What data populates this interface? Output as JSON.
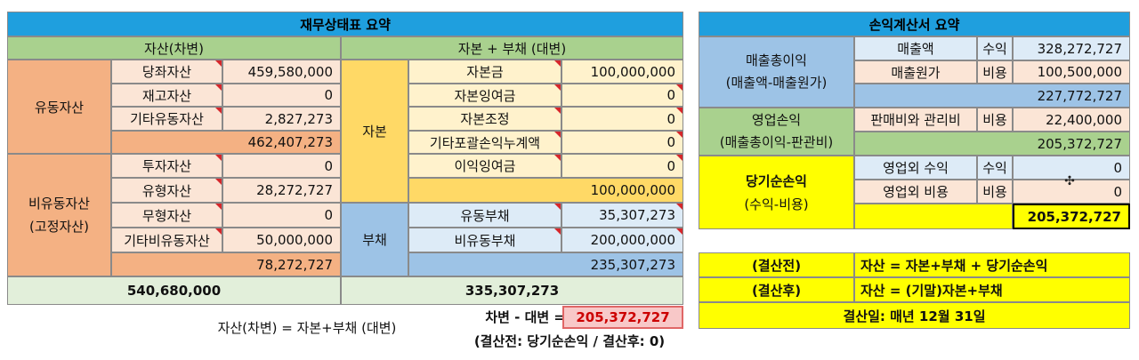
{
  "bs": {
    "title": "재무상태표 요약",
    "assets_header": "자산(차변)",
    "cap_liab_header": "자본 + 부채 (대변)",
    "current_assets": {
      "label": "유동자산",
      "items": [
        {
          "name": "당좌자산",
          "value": "459,580,000"
        },
        {
          "name": "재고자산",
          "value": "0"
        },
        {
          "name": "기타유동자산",
          "value": "2,827,273"
        }
      ],
      "total": "462,407,273"
    },
    "noncurrent_assets": {
      "label1": "비유동자산",
      "label2": "(고정자산)",
      "items": [
        {
          "name": "투자자산",
          "value": "0"
        },
        {
          "name": "유형자산",
          "value": "28,272,727"
        },
        {
          "name": "무형자산",
          "value": "0"
        },
        {
          "name": "기타비유동자산",
          "value": "50,000,000"
        }
      ],
      "total": "78,272,727"
    },
    "capital": {
      "label": "자본",
      "items": [
        {
          "name": "자본금",
          "value": "100,000,000"
        },
        {
          "name": "자본잉여금",
          "value": "0"
        },
        {
          "name": "자본조정",
          "value": "0"
        },
        {
          "name": "기타포괄손익누계액",
          "value": "0"
        },
        {
          "name": "이익잉여금",
          "value": "0"
        }
      ],
      "total": "100,000,000"
    },
    "liabilities": {
      "label": "부채",
      "items": [
        {
          "name": "유동부채",
          "value": "35,307,273"
        },
        {
          "name": "비유동부채",
          "value": "200,000,000"
        }
      ],
      "total": "235,307,273"
    },
    "assets_total": "540,680,000",
    "cap_liab_total": "335,307,273",
    "equation": "자산(차변) = 자본+부채 (대변)",
    "diff_label": "차변 - 대변 =",
    "diff_value": "205,372,727",
    "diff_note": "(결산전: 당기순손익 / 결산후: 0)"
  },
  "is": {
    "title": "손익계산서 요약",
    "gross": {
      "label1": "매출총이익",
      "label2": "(매출액-매출원가)",
      "rows": [
        {
          "name": "매출액",
          "type": "수익",
          "value": "328,272,727"
        },
        {
          "name": "매출원가",
          "type": "비용",
          "value": "100,500,000"
        }
      ],
      "total": "227,772,727"
    },
    "operating": {
      "label1": "영업손익",
      "label2": "(매출총이익-판관비)",
      "rows": [
        {
          "name": "판매비와 관리비",
          "type": "비용",
          "value": "22,400,000"
        }
      ],
      "total": "205,372,727"
    },
    "net": {
      "label1": "당기순손익",
      "label2": "(수익-비용)",
      "rows": [
        {
          "name": "영업외 수익",
          "type": "수익",
          "value": "0"
        },
        {
          "name": "영업외 비용",
          "type": "비용",
          "value": "0"
        }
      ],
      "total": "205,372,727"
    }
  },
  "notes": {
    "before_label": "(결산전)",
    "before_text": "자산 = 자본+부채 + 당기순손익",
    "after_label": "(결산후)",
    "after_text": "자산 = (기말)자본+부채",
    "closing_date": "결산일: 매년 12월 31일"
  },
  "colors": {
    "header_blue": "#1f9fde",
    "accent_red": "#cc0000",
    "highlight_yellow": "#ffff00"
  }
}
